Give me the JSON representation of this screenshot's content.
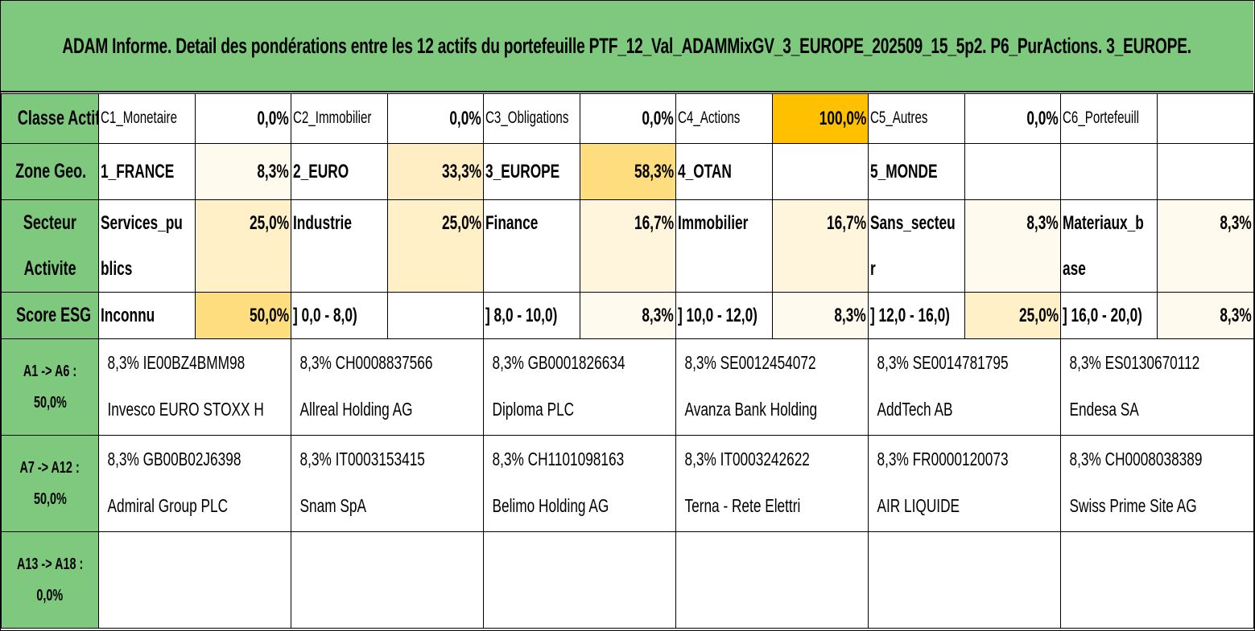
{
  "title": "ADAM Informe. Detail des pondérations entre les 12 actifs du portefeuille PTF_12_Val_ADAMMixGV_3_EUROPE_202509_15_5p2. P6_PurActions. 3_EUROPE.",
  "rows": {
    "classe": {
      "label": "Classe Actif",
      "cells": [
        {
          "name": "C1_Monetaire",
          "pct": "0,0%"
        },
        {
          "name": "C2_Immobilier",
          "pct": "0,0%"
        },
        {
          "name": "C3_Obligations",
          "pct": "0,0%"
        },
        {
          "name": "C4_Actions",
          "pct": "100,0%"
        },
        {
          "name": "C5_Autres",
          "pct": "0,0%"
        },
        {
          "name": "C6_Portefeuill",
          "pct": ""
        }
      ]
    },
    "zone": {
      "label": "Zone Geo.",
      "cells": [
        {
          "name": "1_FRANCE",
          "pct": "8,3%"
        },
        {
          "name": "2_EURO",
          "pct": "33,3%"
        },
        {
          "name": "3_EUROPE",
          "pct": "58,3%"
        },
        {
          "name": "4_OTAN",
          "pct": ""
        },
        {
          "name": "5_MONDE",
          "pct": ""
        },
        {
          "name": "",
          "pct": ""
        }
      ]
    },
    "secteur": {
      "label1": "Secteur",
      "label2": "Activite",
      "cells": [
        {
          "name": "Services_publics",
          "pct": "25,0%"
        },
        {
          "name": "Industrie",
          "pct": "25,0%"
        },
        {
          "name": "Finance",
          "pct": "16,7%"
        },
        {
          "name": "Immobilier",
          "pct": "16,7%"
        },
        {
          "name": "Sans_secteur",
          "pct": "8,3%"
        },
        {
          "name": "Materiaux_base",
          "pct": "8,3%"
        }
      ]
    },
    "esg": {
      "label": "Score ESG",
      "cells": [
        {
          "name": "Inconnu",
          "pct": "50,0%"
        },
        {
          "name": "] 0,0 - 8,0)",
          "pct": ""
        },
        {
          "name": "] 8,0 - 10,0)",
          "pct": "8,3%"
        },
        {
          "name": "] 10,0 - 12,0)",
          "pct": "8,3%"
        },
        {
          "name": "] 12,0 - 16,0)",
          "pct": "25,0%"
        },
        {
          "name": "] 16,0 - 20,0)",
          "pct": "8,3%"
        }
      ]
    }
  },
  "asset_groups": [
    {
      "label1": "A1 -> A6 :",
      "label2": "50,0%",
      "assets": [
        {
          "line1": "8,3% IE00BZ4BMM98",
          "line2": "Invesco EURO STOXX H"
        },
        {
          "line1": "8,3% CH0008837566",
          "line2": "Allreal Holding AG"
        },
        {
          "line1": "8,3% GB0001826634",
          "line2": "Diploma PLC"
        },
        {
          "line1": "8,3% SE0012454072",
          "line2": "Avanza Bank Holding"
        },
        {
          "line1": "8,3% SE0014781795",
          "line2": "AddTech AB"
        },
        {
          "line1": "8,3% ES0130670112",
          "line2": "Endesa SA"
        }
      ]
    },
    {
      "label1": "A7 -> A12 :",
      "label2": "50,0%",
      "assets": [
        {
          "line1": "8,3% GB00B02J6398",
          "line2": "Admiral Group PLC"
        },
        {
          "line1": "8,3% IT0003153415",
          "line2": "Snam SpA"
        },
        {
          "line1": "8,3% CH1101098163",
          "line2": "Belimo Holding AG"
        },
        {
          "line1": "8,3% IT0003242622",
          "line2": "Terna - Rete Elettri"
        },
        {
          "line1": "8,3% FR0000120073",
          "line2": "AIR LIQUIDE"
        },
        {
          "line1": "8,3% CH0008038389",
          "line2": "Swiss Prime Site AG"
        }
      ]
    },
    {
      "label1": "A13 -> A18 :",
      "label2": "0,0%",
      "assets": [
        {
          "line1": "",
          "line2": ""
        },
        {
          "line1": "",
          "line2": ""
        },
        {
          "line1": "",
          "line2": ""
        },
        {
          "line1": "",
          "line2": ""
        },
        {
          "line1": "",
          "line2": ""
        },
        {
          "line1": "",
          "line2": ""
        }
      ]
    }
  ],
  "colors": {
    "header_green": "#7ec97e",
    "heat_strong": "#ffc000",
    "heat_mid": "#fedd7e",
    "heat_light": "#fff0c8",
    "heat_faint": "#fffaee"
  }
}
